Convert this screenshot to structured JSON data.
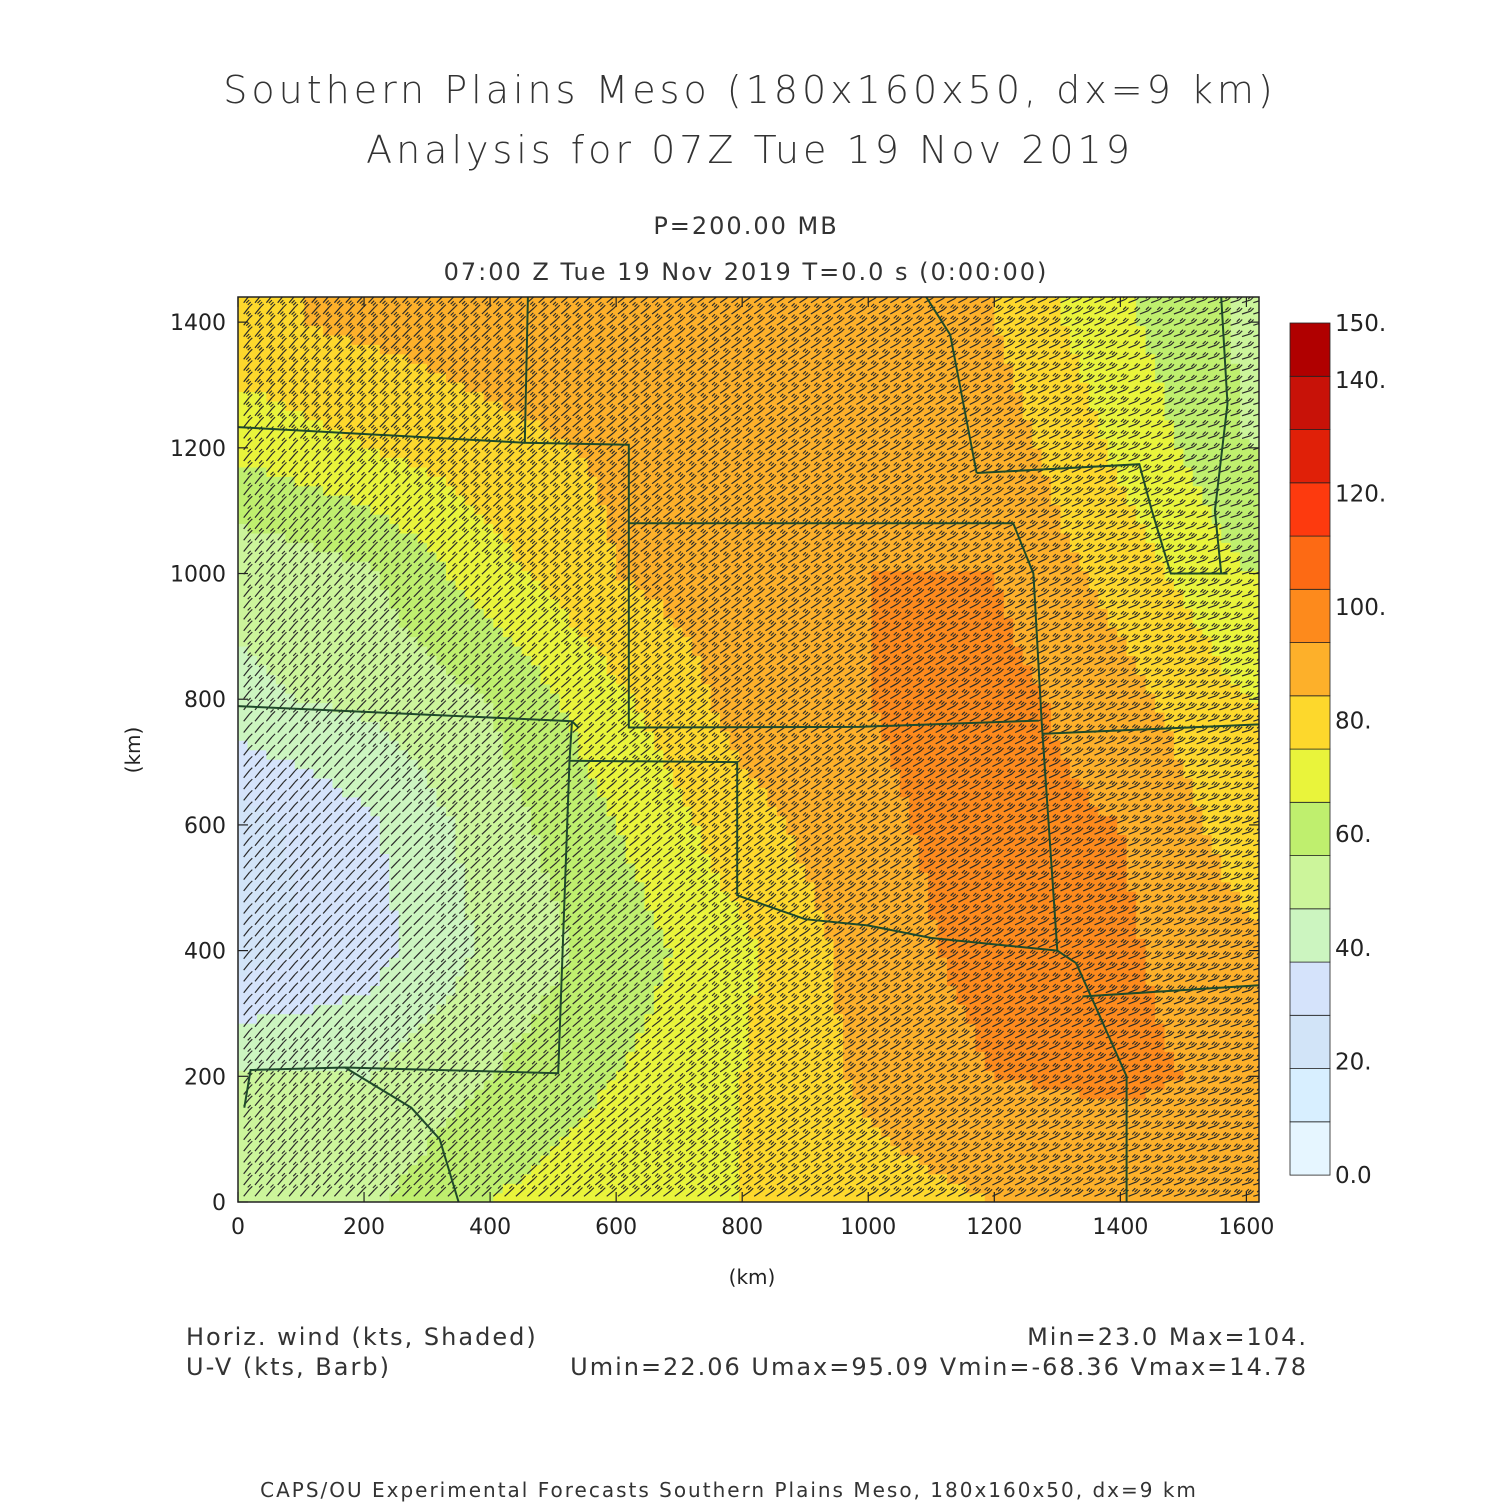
{
  "header": {
    "title_line1": "Southern Plains Meso (180x160x50, dx=9 km)",
    "title_line2": "Analysis for 07Z Tue 19 Nov 2019",
    "level": "P=200.00 MB",
    "time": "07:00 Z Tue 19 Nov 2019    T=0.0 s (0:00:00)"
  },
  "chart_data": {
    "type": "heatmap",
    "xlabel": "(km)",
    "ylabel": "(km)",
    "xlim": [
      0,
      1620
    ],
    "ylim": [
      0,
      1440
    ],
    "x_ticks": [
      "0",
      "200",
      "400",
      "600",
      "800",
      "1000",
      "1200",
      "1400",
      "1600"
    ],
    "y_ticks": [
      "0",
      "200",
      "400",
      "600",
      "800",
      "1000",
      "1200",
      "1400"
    ],
    "colorbar": {
      "levels": [
        0,
        10,
        20,
        30,
        40,
        50,
        60,
        70,
        80,
        90,
        100,
        110,
        120,
        130,
        140,
        150
      ],
      "labels": [
        "0.0",
        "20.",
        "40.",
        "60.",
        "80.",
        "100.",
        "120.",
        "140.",
        "150."
      ],
      "colors": [
        "#e6f6ff",
        "#d8efff",
        "#d2e4f8",
        "#d5e3fb",
        "#ccf5c0",
        "#ccf59b",
        "#bfef6e",
        "#e9f43b",
        "#fdd82c",
        "#fdb02a",
        "#fd8a1c",
        "#fd6a14",
        "#fd3a0e",
        "#e02008",
        "#c81208",
        "#b00000"
      ]
    },
    "wind_speed_kts": {
      "x_km": [
        0,
        200,
        400,
        600,
        800,
        1000,
        1200,
        1400,
        1600
      ],
      "y_km": [
        0,
        200,
        400,
        600,
        800,
        1000,
        1200,
        1400
      ],
      "values": [
        [
          55,
          58,
          70,
          78,
          80,
          86,
          90,
          92,
          95
        ],
        [
          52,
          50,
          60,
          70,
          80,
          92,
          100,
          102,
          98
        ],
        [
          25,
          35,
          52,
          64,
          78,
          95,
          104,
          102,
          92
        ],
        [
          25,
          38,
          55,
          70,
          86,
          98,
          104,
          100,
          85
        ],
        [
          48,
          52,
          60,
          78,
          94,
          100,
          104,
          94,
          80
        ],
        [
          52,
          58,
          76,
          90,
          96,
          100,
          100,
          86,
          70
        ],
        [
          72,
          80,
          86,
          92,
          96,
          100,
          96,
          78,
          60
        ],
        [
          88,
          92,
          96,
          100,
          98,
          96,
          90,
          72,
          58
        ]
      ]
    },
    "stats": {
      "field_label": "Horiz. wind (kts, Shaded)",
      "vector_label": "U-V (kts, Barb)",
      "min_max": "Min=23.0 Max=104.",
      "uv_range": "Umin=22.06 Umax=95.09 Vmin=-68.36 Vmax=14.78"
    }
  },
  "footer": {
    "credit": "CAPS/OU Experimental Forecasts  Southern Plains Meso, 180x160x50, dx=9 km"
  },
  "colors": {
    "border": "#1f4a2a",
    "barb": "#2a2a2a"
  }
}
